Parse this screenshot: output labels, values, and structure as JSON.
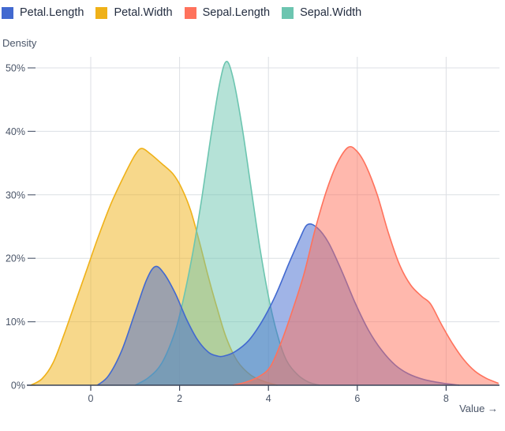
{
  "legend": {
    "items": [
      {
        "label": "Petal.Length",
        "color": "#4269d0"
      },
      {
        "label": "Petal.Width",
        "color": "#efb118"
      },
      {
        "label": "Sepal.Length",
        "color": "#ff725c"
      },
      {
        "label": "Sepal.Width",
        "color": "#6cc5b0"
      }
    ]
  },
  "chart_data": {
    "type": "area",
    "subtype": "kernel-density-estimate",
    "title": "",
    "ylabel": "Density",
    "xlabel": "Value →",
    "grid": true,
    "legend_position": "top-left",
    "fill_opacity": 0.5,
    "colors": {
      "grid": "#dcdfe4",
      "axis": "#3a4458",
      "tick": "#5a6477",
      "text": "#4a5568"
    },
    "x_axis": {
      "range": [
        -1.37,
        9.2
      ],
      "ticks": [
        0,
        2,
        4,
        6,
        8
      ],
      "labels": [
        "0",
        "2",
        "4",
        "6",
        "8"
      ]
    },
    "y_axis": {
      "range": [
        0,
        52
      ],
      "ticks": [
        0,
        10,
        20,
        30,
        40,
        50
      ],
      "labels": [
        "0%",
        "10%",
        "20%",
        "30%",
        "40%",
        "50%"
      ]
    },
    "draw_order": [
      "Petal.Width",
      "Sepal.Width",
      "Petal.Length",
      "Sepal.Length"
    ],
    "series": [
      {
        "name": "Petal.Length",
        "color": "#4269d0",
        "peaks": [
          {
            "x": 1.45,
            "density_pct": 18.7
          },
          {
            "x": 4.88,
            "density_pct": 25.3
          }
        ],
        "points": [
          [
            0.15,
            0
          ],
          [
            0.4,
            1.5
          ],
          [
            0.7,
            5.5
          ],
          [
            1.0,
            11.5
          ],
          [
            1.25,
            16.5
          ],
          [
            1.45,
            18.7
          ],
          [
            1.65,
            17.6
          ],
          [
            1.9,
            14.5
          ],
          [
            2.15,
            10.5
          ],
          [
            2.4,
            7.2
          ],
          [
            2.65,
            5.2
          ],
          [
            2.85,
            4.6
          ],
          [
            3.0,
            4.6
          ],
          [
            3.25,
            5.3
          ],
          [
            3.55,
            7
          ],
          [
            3.85,
            10
          ],
          [
            4.15,
            14
          ],
          [
            4.45,
            19
          ],
          [
            4.7,
            23
          ],
          [
            4.88,
            25.3
          ],
          [
            5.1,
            24.8
          ],
          [
            5.35,
            22.5
          ],
          [
            5.65,
            18
          ],
          [
            5.95,
            13
          ],
          [
            6.25,
            8.7
          ],
          [
            6.55,
            5.5
          ],
          [
            6.85,
            3.2
          ],
          [
            7.15,
            1.8
          ],
          [
            7.5,
            0.9
          ],
          [
            7.9,
            0.35
          ],
          [
            8.3,
            0
          ]
        ]
      },
      {
        "name": "Petal.Width",
        "color": "#efb118",
        "peaks": [
          {
            "x": 1.15,
            "density_pct": 37.3
          }
        ],
        "points": [
          [
            -1.35,
            0
          ],
          [
            -1.1,
            1
          ],
          [
            -0.85,
            3.5
          ],
          [
            -0.6,
            8
          ],
          [
            -0.35,
            13
          ],
          [
            -0.1,
            18
          ],
          [
            0.15,
            23
          ],
          [
            0.45,
            28.5
          ],
          [
            0.75,
            33
          ],
          [
            1.0,
            36.3
          ],
          [
            1.15,
            37.3
          ],
          [
            1.35,
            36.4
          ],
          [
            1.6,
            34.9
          ],
          [
            1.85,
            33.3
          ],
          [
            2.05,
            31
          ],
          [
            2.25,
            27.5
          ],
          [
            2.45,
            22.5
          ],
          [
            2.65,
            17
          ],
          [
            2.85,
            12
          ],
          [
            3.05,
            7.5
          ],
          [
            3.3,
            3.8
          ],
          [
            3.6,
            1.6
          ],
          [
            3.9,
            0.6
          ],
          [
            4.2,
            0
          ]
        ]
      },
      {
        "name": "Sepal.Length",
        "color": "#ff725c",
        "peaks": [
          {
            "x": 5.8,
            "density_pct": 37.5
          }
        ],
        "points": [
          [
            3.2,
            0
          ],
          [
            3.5,
            0.5
          ],
          [
            3.8,
            1.4
          ],
          [
            4.05,
            3
          ],
          [
            4.3,
            7
          ],
          [
            4.55,
            12
          ],
          [
            4.8,
            17.5
          ],
          [
            5.05,
            24.5
          ],
          [
            5.3,
            30.5
          ],
          [
            5.55,
            35
          ],
          [
            5.8,
            37.5
          ],
          [
            6.0,
            36.8
          ],
          [
            6.2,
            34.5
          ],
          [
            6.45,
            30
          ],
          [
            6.7,
            24
          ],
          [
            6.95,
            19
          ],
          [
            7.2,
            15.8
          ],
          [
            7.45,
            14
          ],
          [
            7.65,
            12.8
          ],
          [
            7.9,
            9.5
          ],
          [
            8.15,
            6.5
          ],
          [
            8.4,
            4
          ],
          [
            8.65,
            2.2
          ],
          [
            8.9,
            1.1
          ],
          [
            9.18,
            0.3
          ]
        ]
      },
      {
        "name": "Sepal.Width",
        "color": "#6cc5b0",
        "peaks": [
          {
            "x": 3.05,
            "density_pct": 51
          }
        ],
        "points": [
          [
            1.0,
            0
          ],
          [
            1.3,
            1.2
          ],
          [
            1.6,
            3.5
          ],
          [
            1.9,
            8.5
          ],
          [
            2.1,
            14
          ],
          [
            2.3,
            21
          ],
          [
            2.5,
            29.5
          ],
          [
            2.7,
            39
          ],
          [
            2.9,
            47.5
          ],
          [
            3.05,
            51
          ],
          [
            3.2,
            48.5
          ],
          [
            3.4,
            41
          ],
          [
            3.6,
            31.5
          ],
          [
            3.8,
            22
          ],
          [
            4.0,
            14
          ],
          [
            4.2,
            8
          ],
          [
            4.4,
            4
          ],
          [
            4.65,
            1.7
          ],
          [
            4.9,
            0.5
          ],
          [
            5.15,
            0
          ]
        ]
      }
    ]
  }
}
